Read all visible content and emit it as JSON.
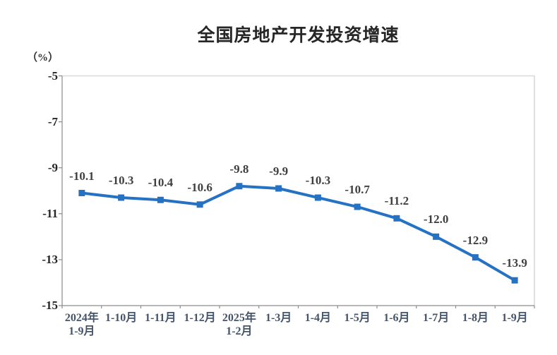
{
  "chart_data": {
    "type": "line",
    "title": "全国房地产开发投资增速",
    "unit_label": "（%）",
    "categories": [
      [
        "2024年",
        "1-9月"
      ],
      [
        "1-10月"
      ],
      [
        "1-11月"
      ],
      [
        "1-12月"
      ],
      [
        "2025年",
        "1-2月"
      ],
      [
        "1-3月"
      ],
      [
        "1-4月"
      ],
      [
        "1-5月"
      ],
      [
        "1-6月"
      ],
      [
        "1-7月"
      ],
      [
        "1-8月"
      ],
      [
        "1-9月"
      ]
    ],
    "values": [
      -10.1,
      -10.3,
      -10.4,
      -10.6,
      -9.8,
      -9.9,
      -10.3,
      -10.7,
      -11.2,
      -12.0,
      -12.9,
      -13.9
    ],
    "data_labels": [
      "-10.1",
      "-10.3",
      "-10.4",
      "-10.6",
      "-9.8",
      "-9.9",
      "-10.3",
      "-10.7",
      "-11.2",
      "-12.0",
      "-12.9",
      "-13.9"
    ],
    "ylim": [
      -15,
      -5
    ],
    "yticks": [
      -5,
      -7,
      -9,
      -11,
      -13,
      -15
    ],
    "ytick_labels": [
      "-5",
      "-7",
      "-9",
      "-11",
      "-13",
      "-15"
    ],
    "grid": false,
    "legend": "none",
    "colors": {
      "line": "#2571C4",
      "marker": "#2571C4",
      "data_label": "#3F3F3F",
      "y_axis_text": "#262626",
      "x_axis_text": "#44546A",
      "axis_line": "#8C8C8C",
      "plot_border": "#D9D9D9"
    }
  }
}
